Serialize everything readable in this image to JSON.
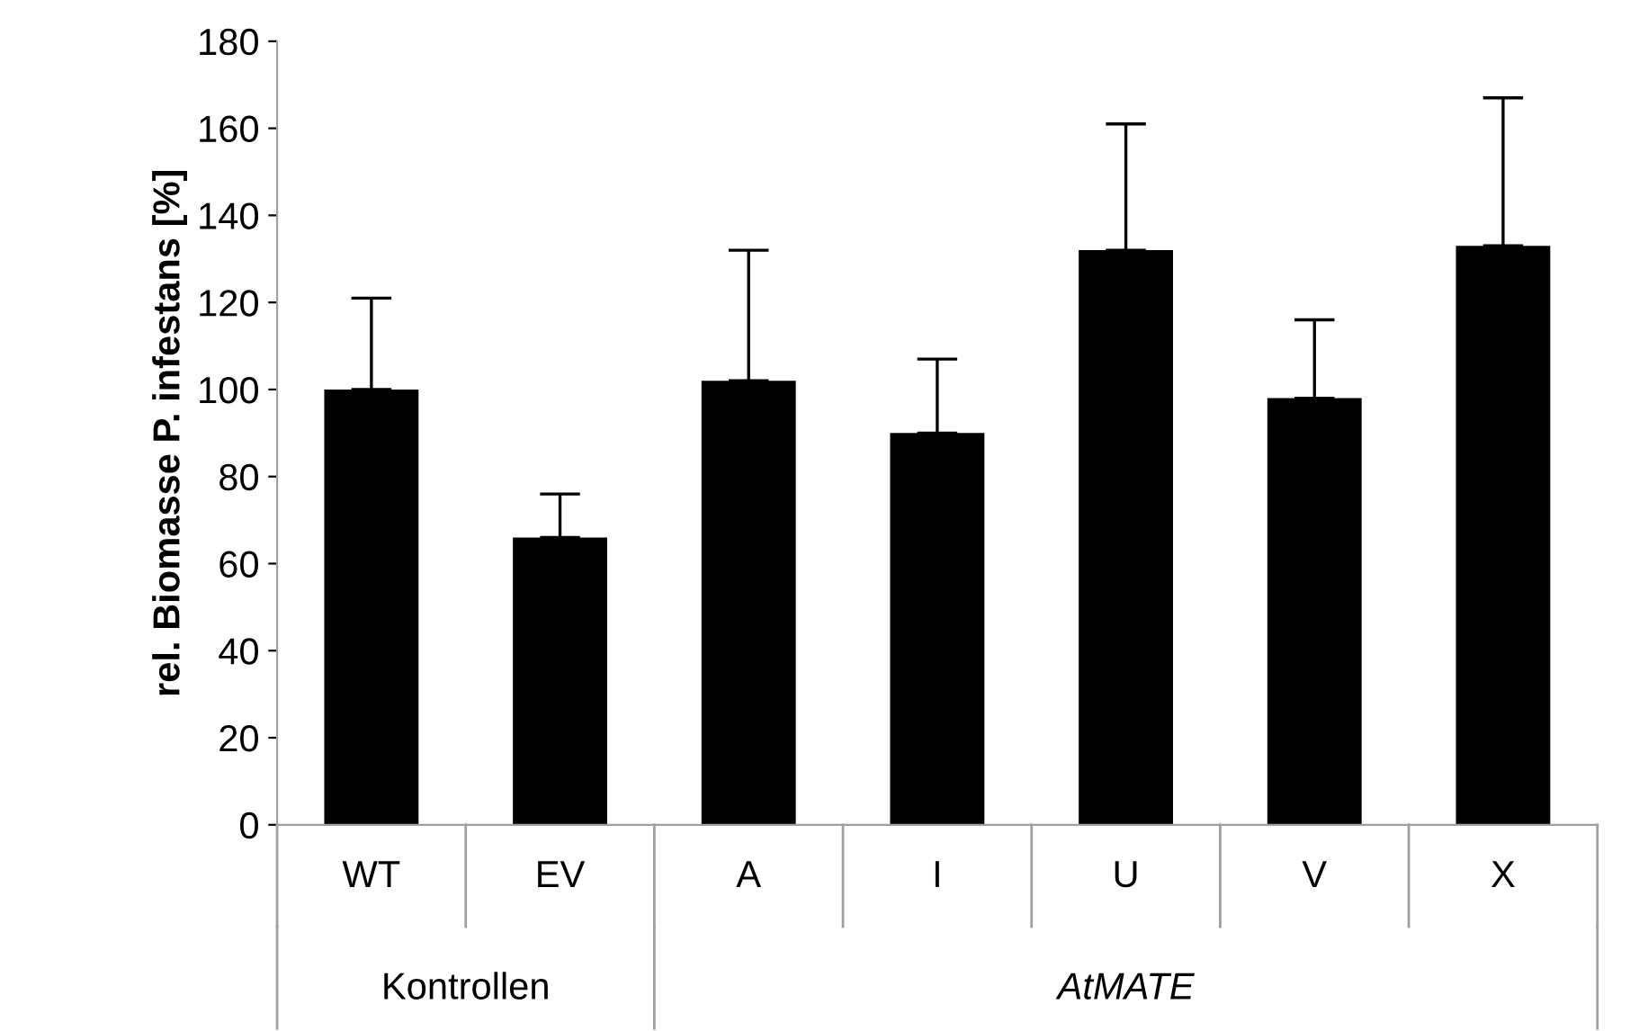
{
  "chart_data": {
    "type": "bar",
    "ylabel": "rel. Biomasse P. infestans [%]",
    "categories": [
      "WT",
      "EV",
      "A",
      "I",
      "U",
      "V",
      "X"
    ],
    "values": [
      100,
      66,
      102,
      90,
      132,
      98,
      133
    ],
    "errors": [
      [
        100,
        121
      ],
      [
        66,
        76
      ],
      [
        102,
        132
      ],
      [
        90,
        107
      ],
      [
        132,
        161
      ],
      [
        98,
        116
      ],
      [
        133,
        167
      ]
    ],
    "color": "#000000",
    "ylim": [
      0,
      180
    ],
    "yticks": [
      0,
      20,
      40,
      60,
      80,
      100,
      120,
      140,
      160,
      180
    ],
    "grid": false,
    "legend": false,
    "annotations": [
      "Kontrollen",
      "AtMATE"
    ]
  }
}
